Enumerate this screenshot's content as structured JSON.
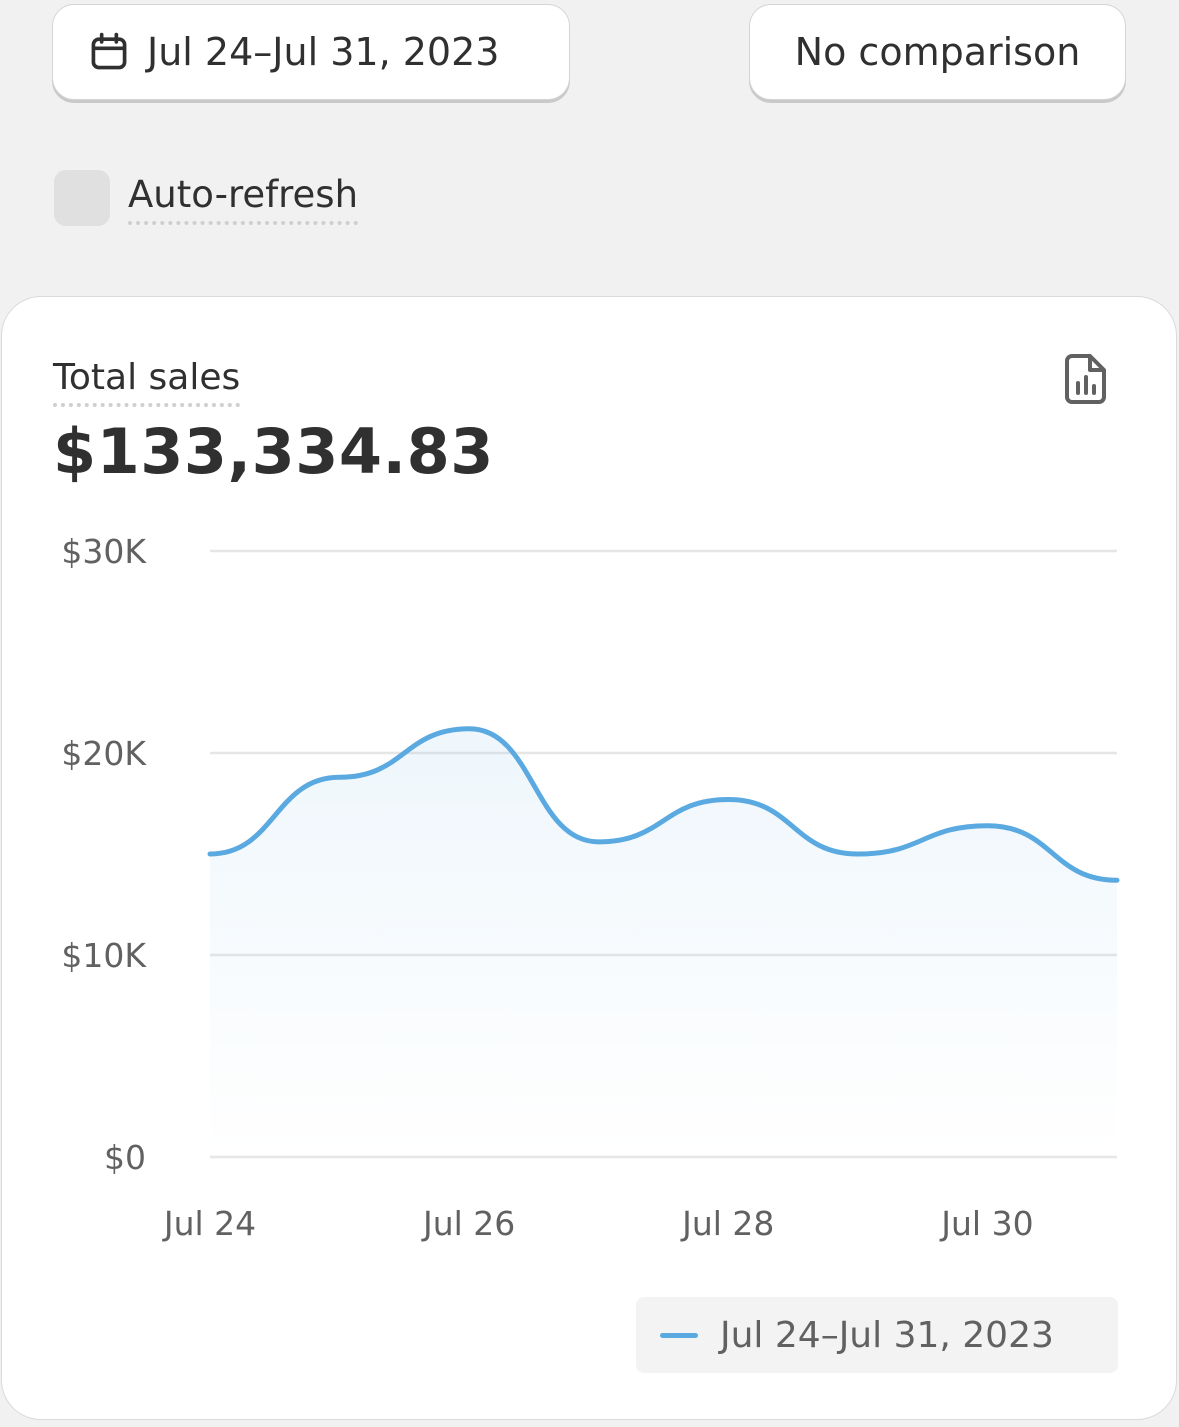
{
  "toolbar": {
    "date_range_label": "Jul 24–Jul 31, 2023",
    "comparison_label": "No comparison"
  },
  "auto_refresh": {
    "label": "Auto-refresh",
    "checked": false
  },
  "card": {
    "metric_label": "Total sales",
    "metric_value": "$133,334.83"
  },
  "colors": {
    "series_line": "#5aa9e0",
    "grid": "#e6e6e6",
    "tick_text": "#616161"
  },
  "icons": {
    "date": "calendar-icon",
    "report": "report-icon"
  },
  "chart_data": {
    "type": "area",
    "x": [
      "Jul 24",
      "Jul 25",
      "Jul 26",
      "Jul 27",
      "Jul 28",
      "Jul 29",
      "Jul 30",
      "Jul 31"
    ],
    "x_tick_labels": [
      "Jul 24",
      "Jul 26",
      "Jul 28",
      "Jul 30"
    ],
    "y_tick_labels": [
      "$0",
      "$10K",
      "$20K",
      "$30K"
    ],
    "y_ticks": [
      0,
      10000,
      20000,
      30000
    ],
    "ylim": [
      0,
      30000
    ],
    "grid": true,
    "legend_position": "bottom-right",
    "series": [
      {
        "name": "Jul 24–Jul 31, 2023",
        "values": [
          15000,
          18800,
          21200,
          15600,
          17700,
          15000,
          16400,
          13700
        ]
      }
    ]
  }
}
